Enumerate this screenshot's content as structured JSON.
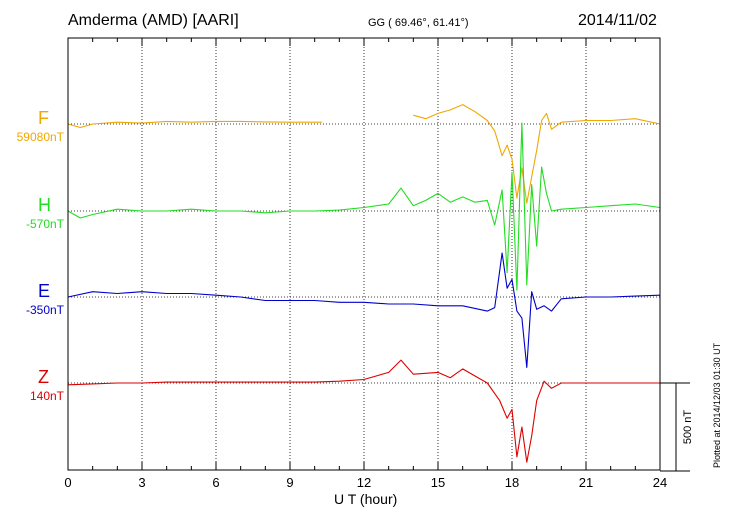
{
  "header": {
    "station": "Amderma (AMD)  [AARI]",
    "coords": "GG ( 69.46°,  61.41°)",
    "date": "2014/11/02"
  },
  "footer": {
    "plotted": "Plotted at 2014/12/03 01:30 UT"
  },
  "colors": {
    "F": "#f0a800",
    "H": "#22dd22",
    "E": "#0000cc",
    "Z": "#dd0000"
  },
  "chart_data": {
    "type": "line",
    "title": "",
    "xlabel": "U T (hour)",
    "ylabel": "",
    "xlim": [
      0,
      24
    ],
    "xticks": [
      "0",
      "3",
      "6",
      "9",
      "12",
      "15",
      "18",
      "21",
      "24"
    ],
    "grid": true,
    "scale_bar": {
      "value_nT": 500,
      "label": "500 nT"
    },
    "series": [
      {
        "name": "F",
        "baseline_label": "59080nT",
        "x": [
          0,
          0.5,
          1,
          2,
          3,
          4,
          5,
          6,
          7,
          8,
          9,
          10.3,
          null,
          14,
          14.5,
          15,
          15.5,
          16,
          16.5,
          17,
          17.3,
          17.6,
          17.8,
          18,
          18.2,
          18.4,
          18.6,
          18.8,
          19,
          19.2,
          19.4,
          19.6,
          20,
          21,
          22,
          23,
          24
        ],
        "y": [
          0,
          -20,
          0,
          10,
          5,
          15,
          10,
          15,
          15,
          12,
          10,
          10,
          null,
          50,
          30,
          60,
          80,
          110,
          70,
          20,
          -40,
          -180,
          -120,
          -200,
          -420,
          -250,
          -450,
          -300,
          -150,
          20,
          60,
          -30,
          10,
          20,
          20,
          30,
          0
        ]
      },
      {
        "name": "H",
        "baseline_label": "-570nT",
        "x": [
          0,
          0.5,
          1,
          2,
          3,
          4,
          5,
          6,
          7,
          8,
          9,
          10,
          11,
          12,
          13,
          13.5,
          14,
          14.5,
          15,
          15.5,
          16,
          16.5,
          17,
          17.3,
          17.6,
          17.8,
          18,
          18.2,
          18.4,
          18.6,
          18.8,
          19,
          19.2,
          19.4,
          19.6,
          20,
          21,
          22,
          23,
          24
        ],
        "y": [
          0,
          -40,
          -20,
          10,
          0,
          0,
          10,
          0,
          0,
          -10,
          0,
          0,
          5,
          20,
          40,
          130,
          30,
          60,
          100,
          50,
          80,
          50,
          60,
          -80,
          120,
          -350,
          220,
          -450,
          500,
          -420,
          150,
          -200,
          250,
          100,
          0,
          10,
          20,
          30,
          40,
          20
        ]
      },
      {
        "name": "E",
        "baseline_label": "-350nT",
        "x": [
          0,
          1,
          2,
          3,
          4,
          5,
          6,
          7,
          8,
          9,
          10,
          11,
          12,
          13,
          14,
          15,
          16,
          17,
          17.3,
          17.6,
          17.8,
          18,
          18.2,
          18.4,
          18.6,
          18.8,
          19,
          19.3,
          19.6,
          20,
          21,
          22,
          23,
          24
        ],
        "y": [
          0,
          30,
          20,
          30,
          20,
          20,
          10,
          0,
          -20,
          -20,
          -20,
          -30,
          -30,
          -40,
          -40,
          -50,
          -50,
          -80,
          -60,
          250,
          50,
          100,
          -80,
          -120,
          -400,
          30,
          -70,
          -50,
          -80,
          -10,
          0,
          0,
          5,
          10
        ]
      },
      {
        "name": "Z",
        "baseline_label": "140nT",
        "x": [
          0,
          1,
          2,
          3,
          4,
          5,
          6,
          7,
          8,
          9,
          10,
          11,
          12,
          13,
          13.5,
          14,
          15,
          15.5,
          16,
          16.5,
          17,
          17.5,
          17.8,
          18,
          18.2,
          18.4,
          18.6,
          18.8,
          19,
          19.3,
          19.6,
          20,
          21,
          22,
          23,
          24
        ],
        "y": [
          -10,
          -5,
          0,
          0,
          5,
          5,
          5,
          5,
          5,
          5,
          5,
          10,
          20,
          60,
          130,
          50,
          60,
          30,
          80,
          40,
          0,
          -100,
          -200,
          -150,
          -420,
          -250,
          -450,
          -300,
          -100,
          10,
          -30,
          0,
          0,
          0,
          0,
          0
        ]
      }
    ]
  }
}
